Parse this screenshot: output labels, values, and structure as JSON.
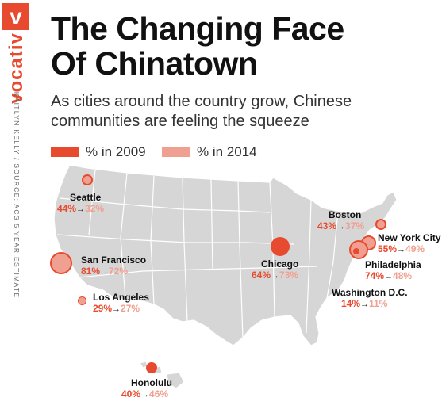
{
  "brand": {
    "logo_letter": "v",
    "name": "vocativ",
    "credit": "KAITLYN KELLY / SOURCE: ACS 5 YEAR ESTIMATE"
  },
  "title_line1": "The Changing Face",
  "title_line2": "Of Chinatown",
  "subtitle_line1": "As cities around the country grow, Chinese",
  "subtitle_line2": "communities are feeling the squeeze",
  "legend": {
    "label_2009": "% in 2009",
    "label_2014": "% in 2014"
  },
  "colors": {
    "accent": "#e84a2f",
    "pct_2014": "#f0a090",
    "map_land": "#d6d6d6",
    "map_border": "#ffffff"
  },
  "cities": [
    {
      "name": "Seattle",
      "pct_2009": "44%",
      "pct_2014": "32%",
      "value_2009": 44,
      "value_2014": 32
    },
    {
      "name": "San Francisco",
      "pct_2009": "81%",
      "pct_2014": "72%",
      "value_2009": 81,
      "value_2014": 72
    },
    {
      "name": "Los Angeles",
      "pct_2009": "29%",
      "pct_2014": "27%",
      "value_2009": 29,
      "value_2014": 27
    },
    {
      "name": "Honolulu",
      "pct_2009": "40%",
      "pct_2014": "46%",
      "value_2009": 40,
      "value_2014": 46
    },
    {
      "name": "Chicago",
      "pct_2009": "64%",
      "pct_2014": "73%",
      "value_2009": 64,
      "value_2014": 73
    },
    {
      "name": "Boston",
      "pct_2009": "43%",
      "pct_2014": "37%",
      "value_2009": 43,
      "value_2014": 37
    },
    {
      "name": "New York City",
      "pct_2009": "55%",
      "pct_2014": "49%",
      "value_2009": 55,
      "value_2014": 49
    },
    {
      "name": "Philadelphia",
      "pct_2009": "74%",
      "pct_2014": "48%",
      "value_2009": 74,
      "value_2014": 48
    },
    {
      "name": "Washington D.C.",
      "pct_2009": "14%",
      "pct_2014": "11%",
      "value_2009": 14,
      "value_2014": 11
    }
  ]
}
